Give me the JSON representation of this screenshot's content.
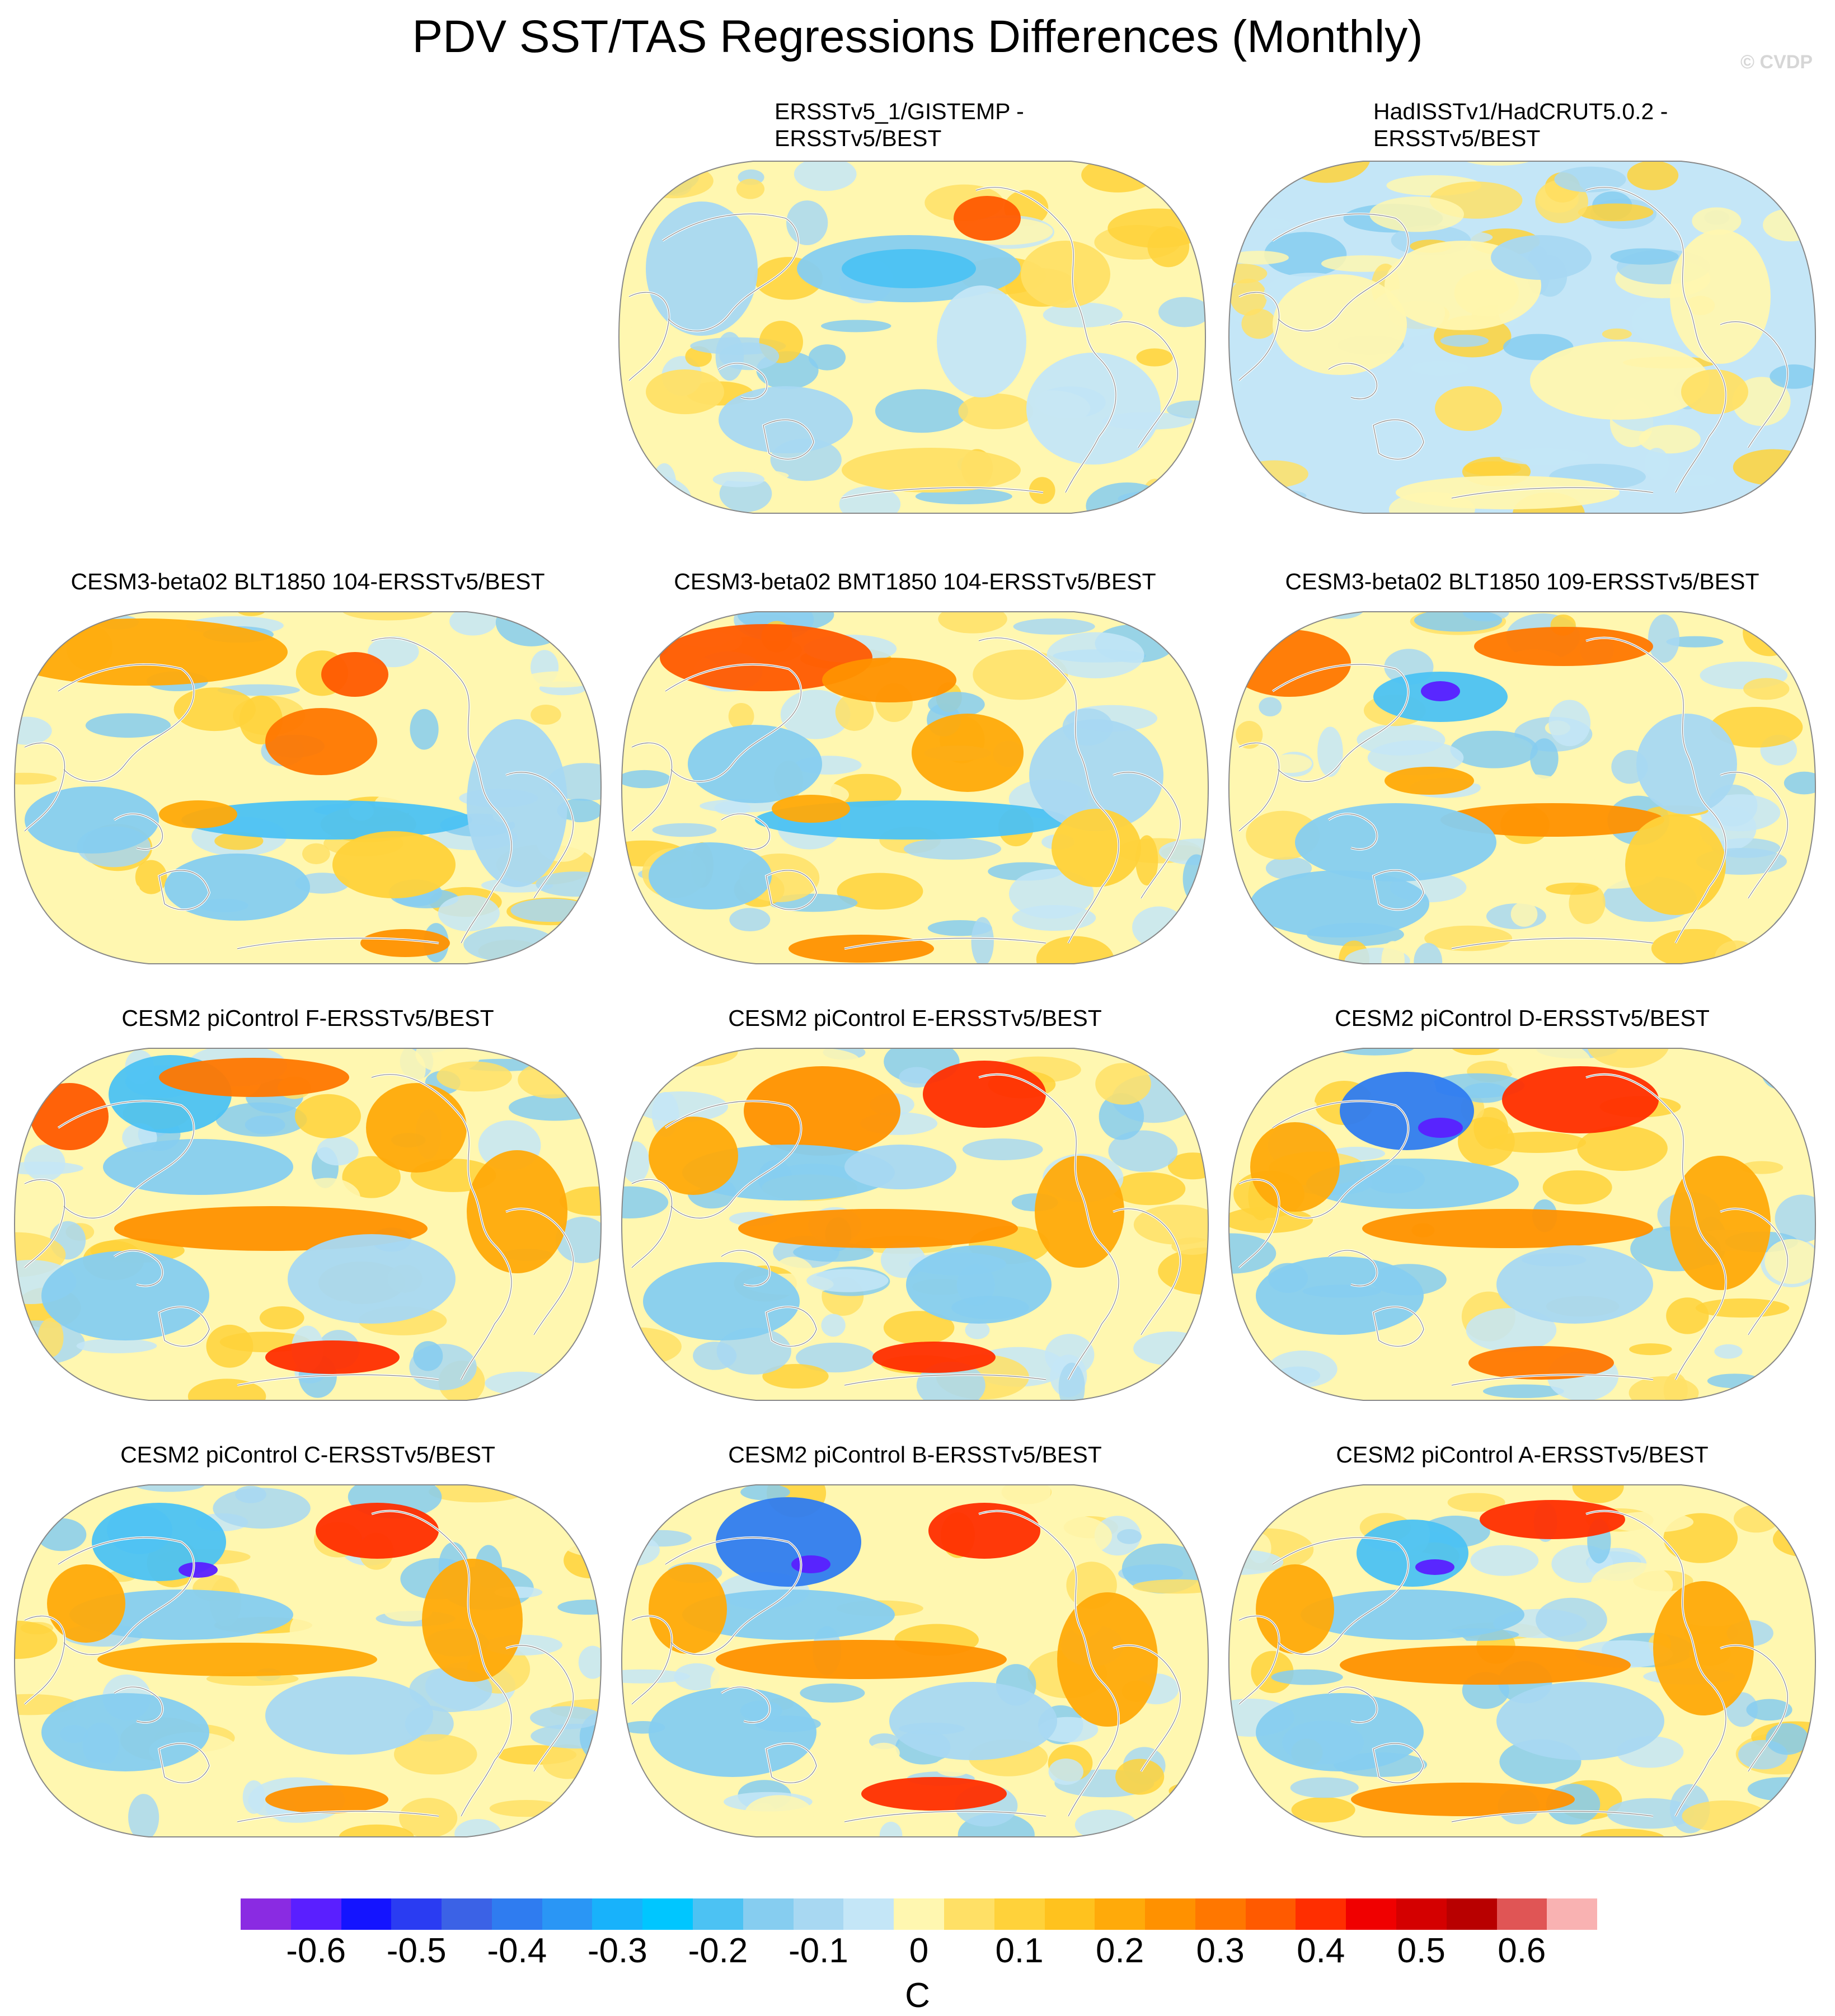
{
  "title": "PDV SST/TAS Regressions Differences (Monthly)",
  "copyright": "© CVDP",
  "units": "C",
  "colorbar": {
    "colors": [
      "#8a2be2",
      "#5a1fff",
      "#1414ff",
      "#2a3cf2",
      "#3b62e6",
      "#2f7cf0",
      "#2a96f5",
      "#18b2fb",
      "#00c6ff",
      "#4cc2f3",
      "#86cdf0",
      "#a8d8f2",
      "#c4e6f7",
      "#fff7b0",
      "#ffe066",
      "#ffd23a",
      "#ffc21e",
      "#ffaa0a",
      "#ff9100",
      "#ff7700",
      "#ff5a00",
      "#ff2e00",
      "#f00000",
      "#d40000",
      "#b80000",
      "#e05555",
      "#f9b2b2"
    ],
    "labels": [
      "-0.6",
      "-0.5",
      "-0.4",
      "-0.3",
      "-0.2",
      "-0.1",
      "0",
      "0.1",
      "0.2",
      "0.3",
      "0.4",
      "0.5",
      "0.6"
    ]
  },
  "panels": [
    {
      "title_lines": [
        "ERSSTv5_1/GISTEMP -",
        "ERSSTv5/BEST"
      ],
      "pattern": "obs1"
    },
    {
      "title_lines": [
        "HadISSTv1/HadCRUT5.0.2 -",
        "ERSSTv5/BEST"
      ],
      "pattern": "obs2"
    },
    {
      "title_lines": [
        "CESM3-beta02 BLT1850 104-ERSSTv5/BEST"
      ],
      "pattern": "m1"
    },
    {
      "title_lines": [
        "CESM3-beta02 BMT1850 104-ERSSTv5/BEST"
      ],
      "pattern": "m2"
    },
    {
      "title_lines": [
        "CESM3-beta02 BLT1850 109-ERSSTv5/BEST"
      ],
      "pattern": "m3"
    },
    {
      "title_lines": [
        "CESM2 piControl F-ERSSTv5/BEST"
      ],
      "pattern": "m4"
    },
    {
      "title_lines": [
        "CESM2 piControl E-ERSSTv5/BEST"
      ],
      "pattern": "m5"
    },
    {
      "title_lines": [
        "CESM2 piControl D-ERSSTv5/BEST"
      ],
      "pattern": "m6"
    },
    {
      "title_lines": [
        "CESM2 piControl C-ERSSTv5/BEST"
      ],
      "pattern": "m7"
    },
    {
      "title_lines": [
        "CESM2 piControl B-ERSSTv5/BEST"
      ],
      "pattern": "m8"
    },
    {
      "title_lines": [
        "CESM2 piControl A-ERSSTv5/BEST"
      ],
      "pattern": "m9"
    }
  ]
}
